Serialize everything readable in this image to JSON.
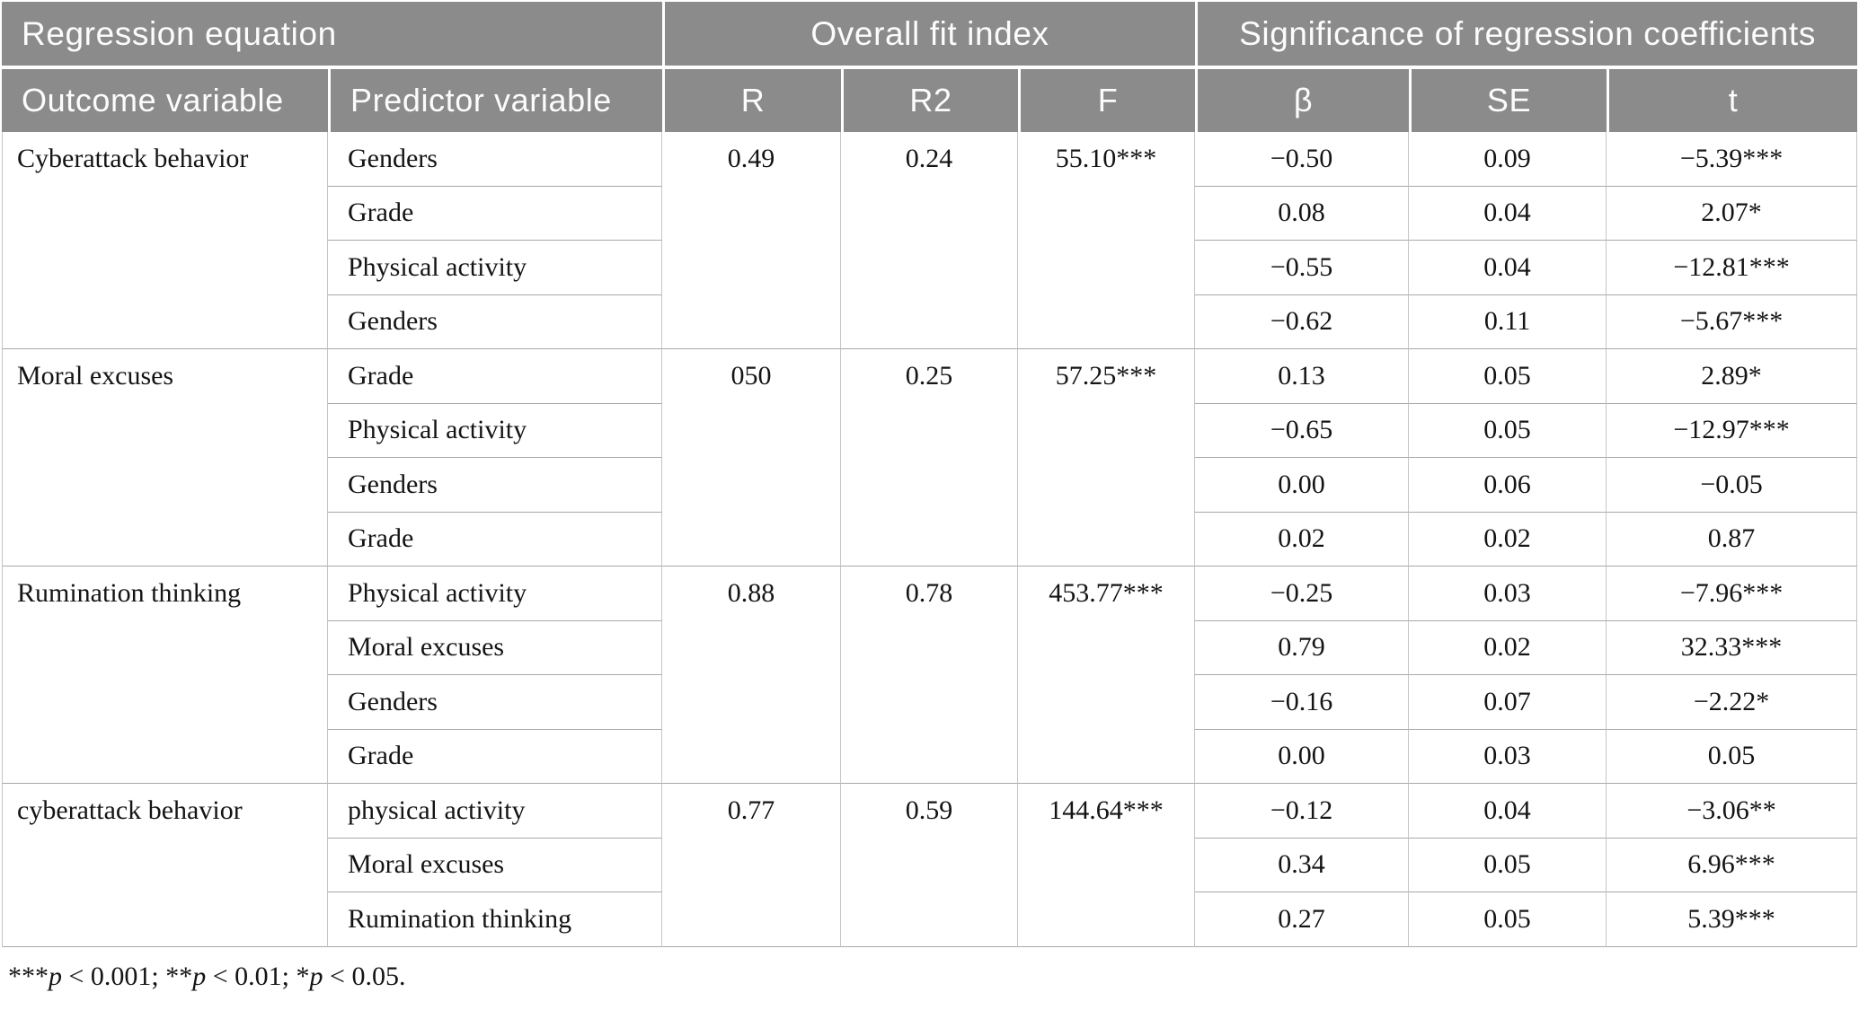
{
  "colors": {
    "header_bg": "#8b8b8b",
    "header_text": "#fcfcfc",
    "row_line": "#a9a9a9",
    "col_line": "#c6c6c6",
    "text": "#141414"
  },
  "table": {
    "header_groups": [
      {
        "label": "Regression equation",
        "colspan": 2,
        "align": "left"
      },
      {
        "label": "Overall fit index",
        "colspan": 3,
        "align": "center"
      },
      {
        "label": "Significance of regression coefficients",
        "colspan": 3,
        "align": "center"
      }
    ],
    "columns": [
      "Outcome variable",
      "Predictor variable",
      "R",
      "R2",
      "F",
      "β",
      "SE",
      "t"
    ],
    "blocks": [
      {
        "outcome": "Cyberattack behavior",
        "R": "0.49",
        "R2": "0.24",
        "F": "55.10***",
        "rows": [
          {
            "predictor": "Genders",
            "beta": "−0.50",
            "se": "0.09",
            "t": "−5.39***"
          },
          {
            "predictor": "Grade",
            "beta": "0.08",
            "se": "0.04",
            "t": "2.07*"
          },
          {
            "predictor": "Physical activity",
            "beta": "−0.55",
            "se": "0.04",
            "t": "−12.81***"
          },
          {
            "predictor": "Genders",
            "beta": "−0.62",
            "se": "0.11",
            "t": "−5.67***"
          }
        ]
      },
      {
        "outcome": "Moral excuses",
        "R": "050",
        "R2": "0.25",
        "F": "57.25***",
        "rows": [
          {
            "predictor": "Grade",
            "beta": "0.13",
            "se": "0.05",
            "t": "2.89*"
          },
          {
            "predictor": "Physical activity",
            "beta": "−0.65",
            "se": "0.05",
            "t": "−12.97***"
          },
          {
            "predictor": "Genders",
            "beta": "0.00",
            "se": "0.06",
            "t": "−0.05"
          },
          {
            "predictor": "Grade",
            "beta": "0.02",
            "se": "0.02",
            "t": "0.87"
          }
        ]
      },
      {
        "outcome": "Rumination thinking",
        "R": "0.88",
        "R2": "0.78",
        "F": "453.77***",
        "rows": [
          {
            "predictor": "Physical activity",
            "beta": "−0.25",
            "se": "0.03",
            "t": "−7.96***"
          },
          {
            "predictor": "Moral excuses",
            "beta": "0.79",
            "se": "0.02",
            "t": "32.33***"
          },
          {
            "predictor": "Genders",
            "beta": "−0.16",
            "se": "0.07",
            "t": "−2.22*"
          },
          {
            "predictor": "Grade",
            "beta": "0.00",
            "se": "0.03",
            "t": "0.05"
          }
        ]
      },
      {
        "outcome": "cyberattack behavior",
        "R": "0.77",
        "R2": "0.59",
        "F": "144.64***",
        "rows": [
          {
            "predictor": "physical activity",
            "beta": "−0.12",
            "se": "0.04",
            "t": "−3.06**"
          },
          {
            "predictor": "Moral excuses",
            "beta": "0.34",
            "se": "0.05",
            "t": "6.96***"
          },
          {
            "predictor": "Rumination thinking",
            "beta": "0.27",
            "se": "0.05",
            "t": "5.39***"
          }
        ]
      }
    ],
    "footnote_parts": [
      {
        "text": "***",
        "italic": false
      },
      {
        "text": "p",
        "italic": true
      },
      {
        "text": " < 0.001; ",
        "italic": false
      },
      {
        "text": "**",
        "italic": false
      },
      {
        "text": "p",
        "italic": true
      },
      {
        "text": " < 0.01; ",
        "italic": false
      },
      {
        "text": "*",
        "italic": false
      },
      {
        "text": "p",
        "italic": true
      },
      {
        "text": " < 0.05.",
        "italic": false
      }
    ]
  }
}
